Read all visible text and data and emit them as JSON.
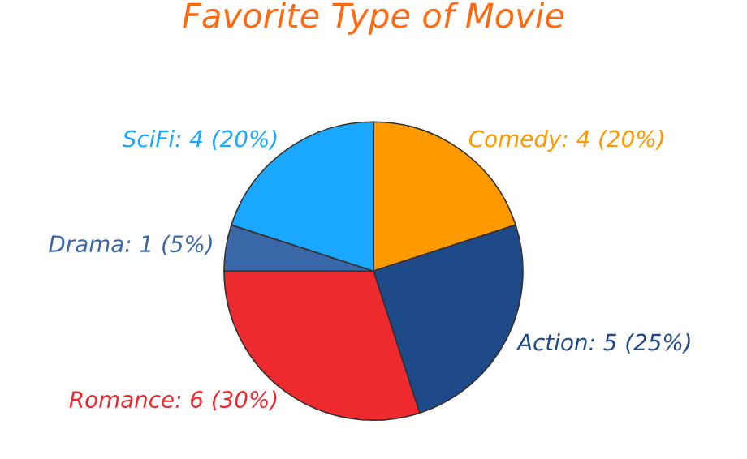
{
  "chart_data": {
    "type": "pie",
    "title": "Favorite Type of Movie",
    "categories": [
      "Comedy",
      "Action",
      "Romance",
      "Drama",
      "SciFi"
    ],
    "values": [
      4,
      5,
      6,
      1,
      4
    ],
    "value_labels": [
      "4 (20%)",
      "5 (25%)",
      "6 (30%)",
      "1 (5%)",
      "4 (20%)"
    ],
    "colors": [
      "#ff9900",
      "#1f4a8a",
      "#ee2a2e",
      "#3a67a8",
      "#1aa7ff"
    ],
    "legend": false
  }
}
